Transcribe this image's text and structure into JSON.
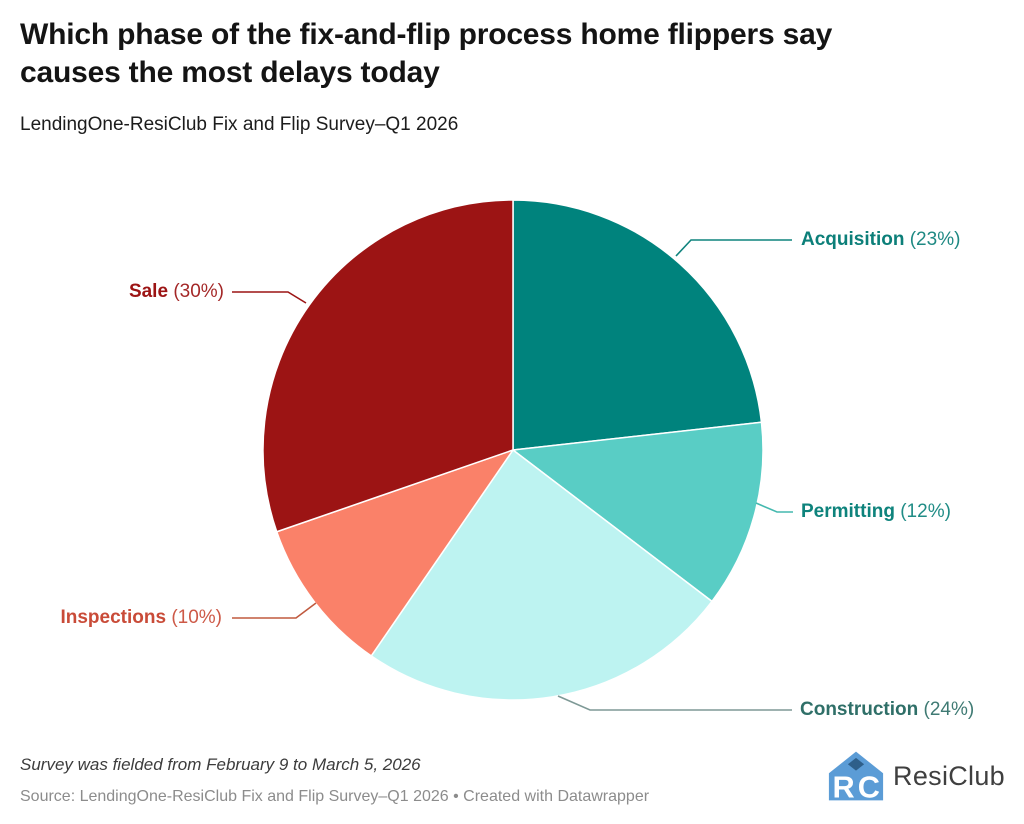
{
  "chart_data": {
    "type": "pie",
    "title": "Which phase of the fix-and-flip process home flippers say causes the most delays today",
    "subtitle": "LendingOne-ResiClub Fix and Flip Survey–Q1 2026",
    "note": "Survey was fielded from February 9 to March 5, 2026",
    "source": "Source: LendingOne-ResiClub Fix and Flip Survey–Q1 2026 • Created with Datawrapper",
    "categories": [
      "Acquisition",
      "Permitting",
      "Construction",
      "Inspections",
      "Sale"
    ],
    "values": [
      23,
      12,
      24,
      10,
      30
    ],
    "unit": "%",
    "start_angle_deg": 0,
    "direction": "clockwise",
    "legend": "callout-labels-with-leader-lines",
    "slices": [
      {
        "label": "Acquisition",
        "value": 23,
        "pct_label": "(23%)",
        "display": "Acquisition (23%)",
        "color": "#00837d",
        "label_color": "#0c7f79",
        "leader_color": "#0f837d"
      },
      {
        "label": "Permitting",
        "value": 12,
        "pct_label": "(12%)",
        "display": "Permitting (12%)",
        "color": "#59cdc5",
        "label_color": "#0e837c",
        "leader_color": "#45b9af"
      },
      {
        "label": "Construction",
        "value": 24,
        "pct_label": "(24%)",
        "display": "Construction (24%)",
        "color": "#bdf3f1",
        "label_color": "#2f6f68",
        "leader_color": "#7e9996"
      },
      {
        "label": "Inspections",
        "value": 10,
        "pct_label": "(10%)",
        "display": "Inspections (10%)",
        "color": "#fa8169",
        "label_color": "#c94b38",
        "leader_color": "#c05a3f"
      },
      {
        "label": "Sale",
        "value": 30,
        "pct_label": "(30%)",
        "display": "Sale (30%)",
        "color": "#9c1414",
        "label_color": "#9c1414",
        "leader_color": "#9c1414"
      }
    ]
  },
  "branding": {
    "logo_text": "ResiClub",
    "logo_color": "#5b9cd6",
    "logo_accent_color": "#2e5f8a",
    "logo_text_color": "#3f3f3f"
  }
}
